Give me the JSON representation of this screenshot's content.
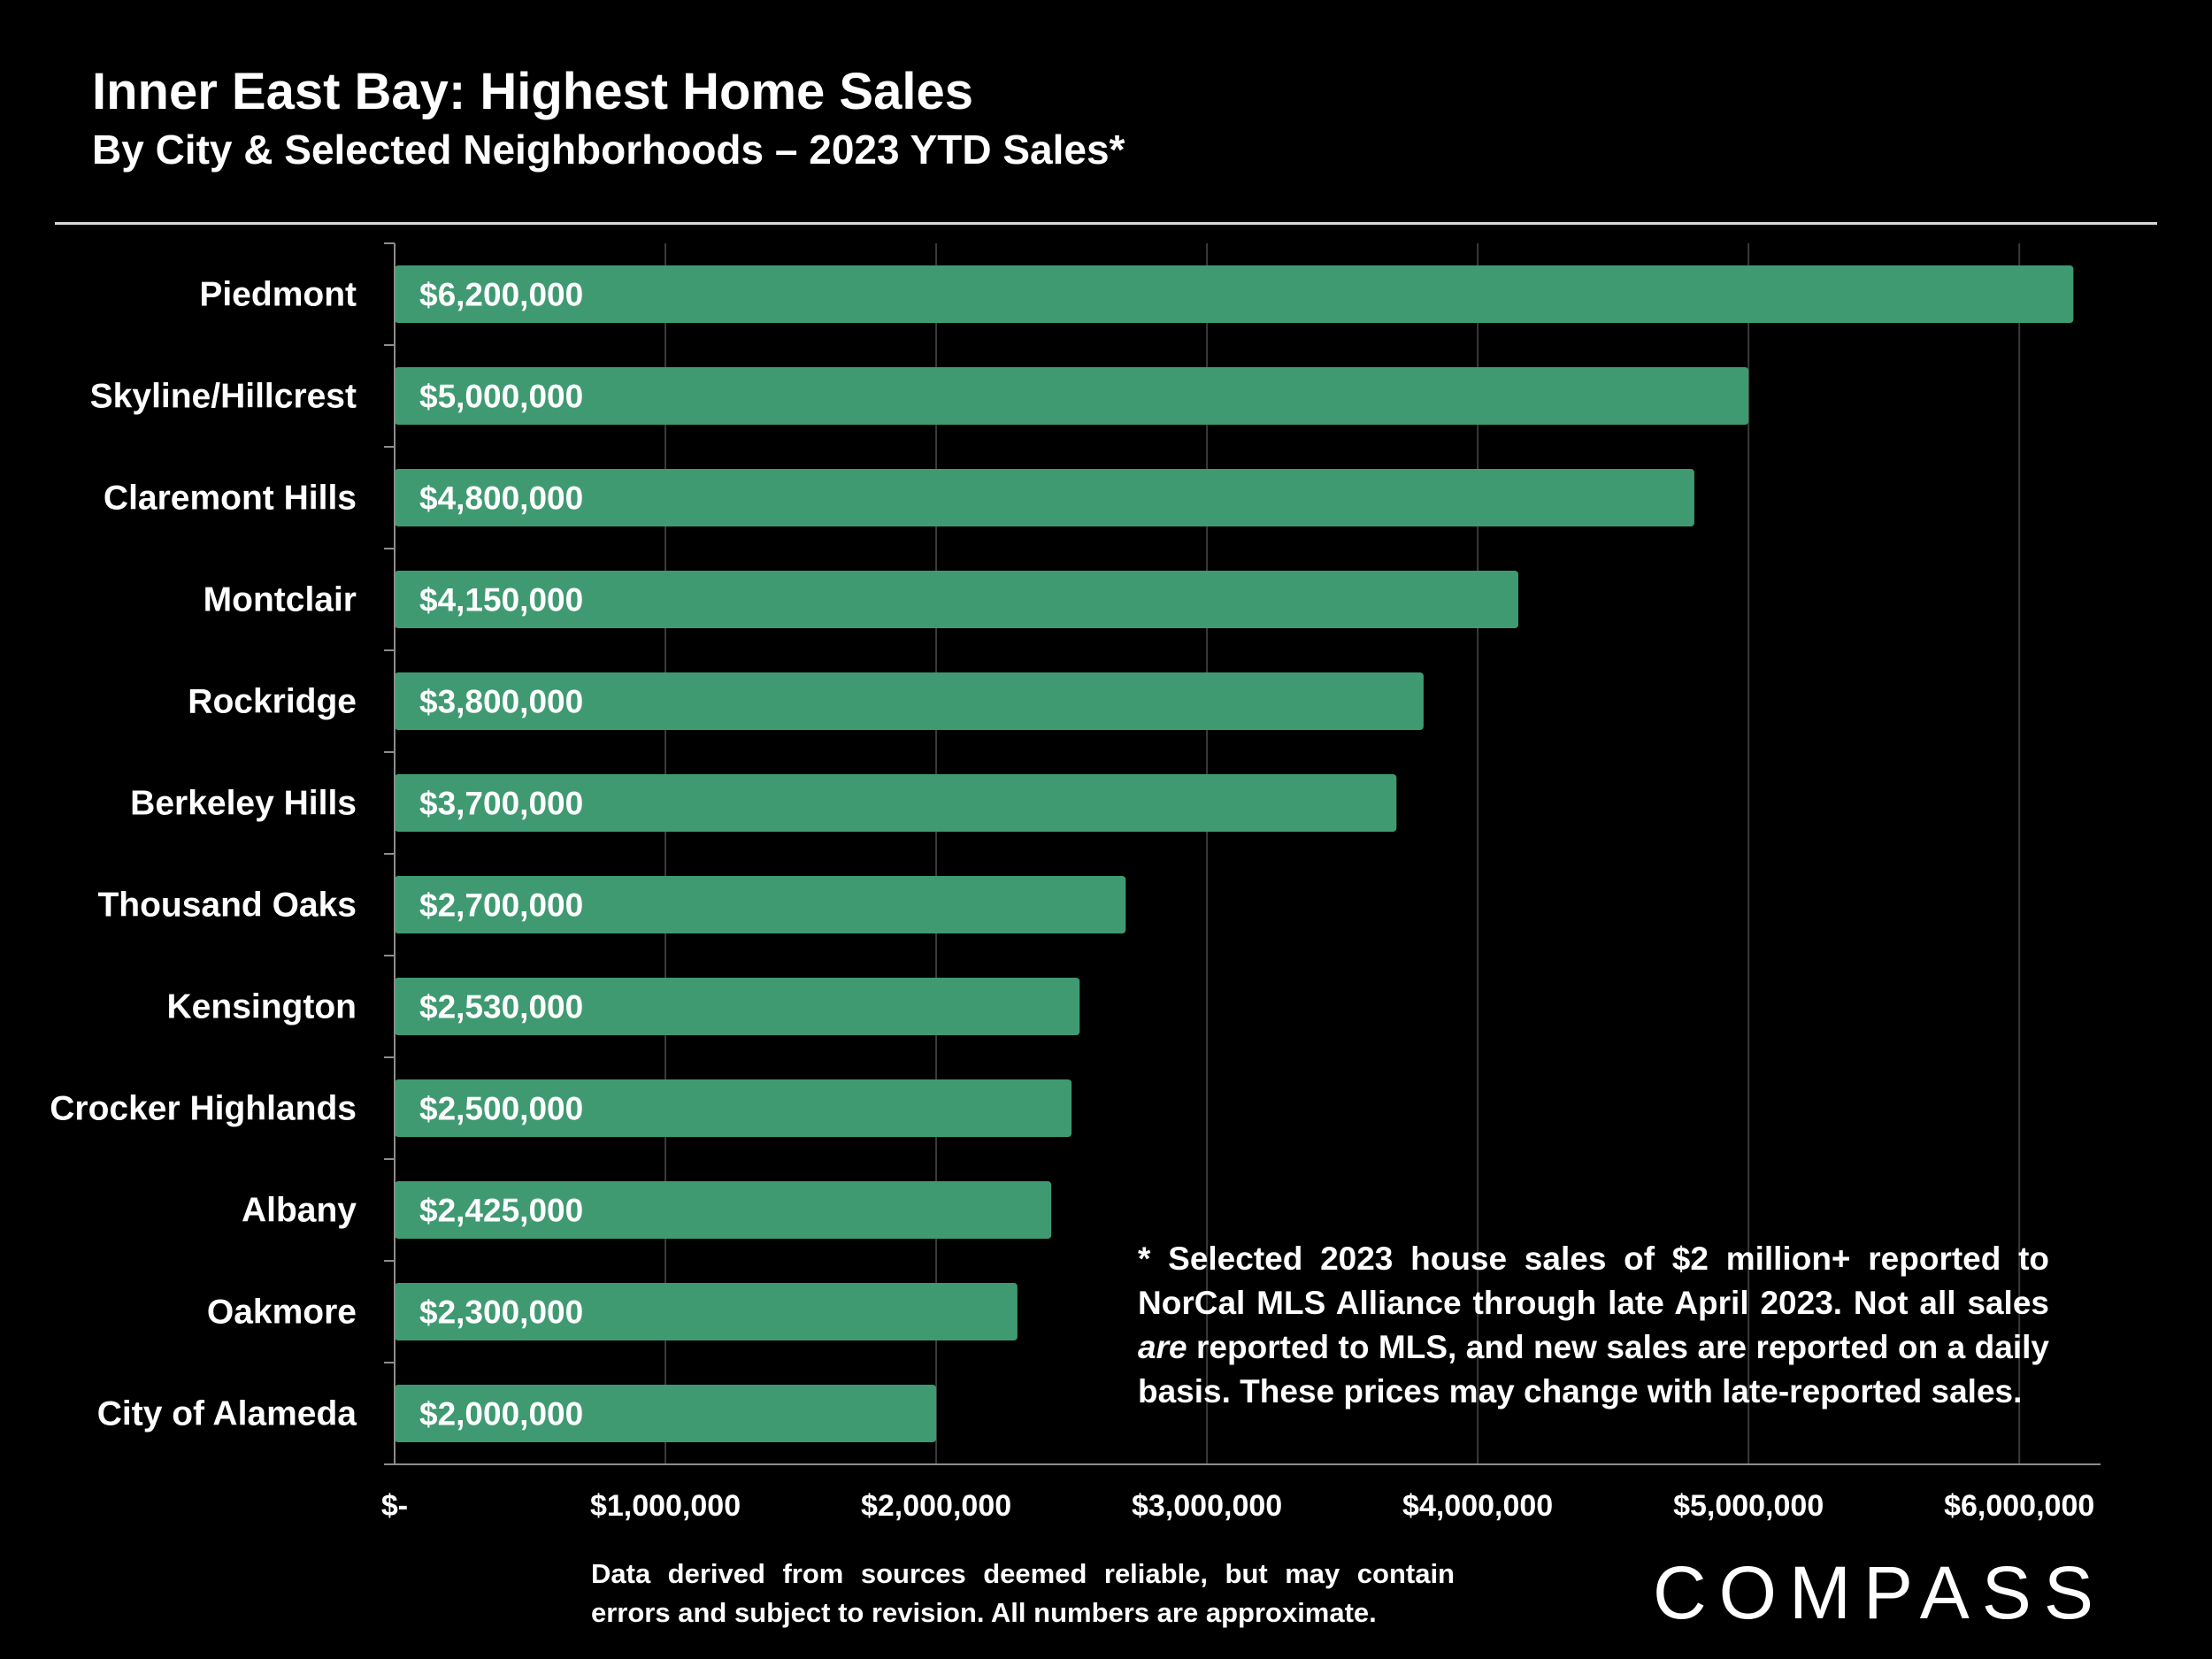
{
  "header": {
    "title": "Inner East Bay: Highest Home Sales",
    "subtitle": "By City & Selected Neighborhoods – 2023 YTD Sales*"
  },
  "chart_data": {
    "type": "bar",
    "orientation": "horizontal",
    "categories": [
      "Piedmont",
      "Skyline/Hillcrest",
      "Claremont Hills",
      "Montclair",
      "Rockridge",
      "Berkeley Hills",
      "Thousand Oaks",
      "Kensington",
      "Crocker Highlands",
      "Albany",
      "Oakmore",
      "City of Alameda"
    ],
    "values": [
      6200000,
      5000000,
      4800000,
      4150000,
      3800000,
      3700000,
      2700000,
      2530000,
      2500000,
      2425000,
      2300000,
      2000000
    ],
    "data_labels": [
      "$6,200,000",
      "$5,000,000",
      "$4,800,000",
      "$4,150,000",
      "$3,800,000",
      "$3,700,000",
      "$2,700,000",
      "$2,530,000",
      "$2,500,000",
      "$2,425,000",
      "$2,300,000",
      "$2,000,000"
    ],
    "x_ticks": [
      0,
      1000000,
      2000000,
      3000000,
      4000000,
      5000000,
      6000000
    ],
    "x_tick_labels": [
      "$-",
      "$1,000,000",
      "$2,000,000",
      "$3,000,000",
      "$4,000,000",
      "$5,000,000",
      "$6,000,000"
    ],
    "xlim": [
      0,
      6300000
    ],
    "grid": true,
    "bar_color": "#3f9a72"
  },
  "footnote": {
    "line_start": "* Selected 2023 house sales of $2 million+ reported to NorCal MLS Alliance through late April 2023. Not all sales ",
    "emphasis": "are",
    "line_end": " reported to MLS, and new sales are reported on a daily basis. These prices may change with late-reported sales."
  },
  "disclaimer": "Data derived from sources deemed reliable, but may contain errors and subject to revision. All numbers are approximate.",
  "logo": {
    "text": "COMPASS"
  }
}
